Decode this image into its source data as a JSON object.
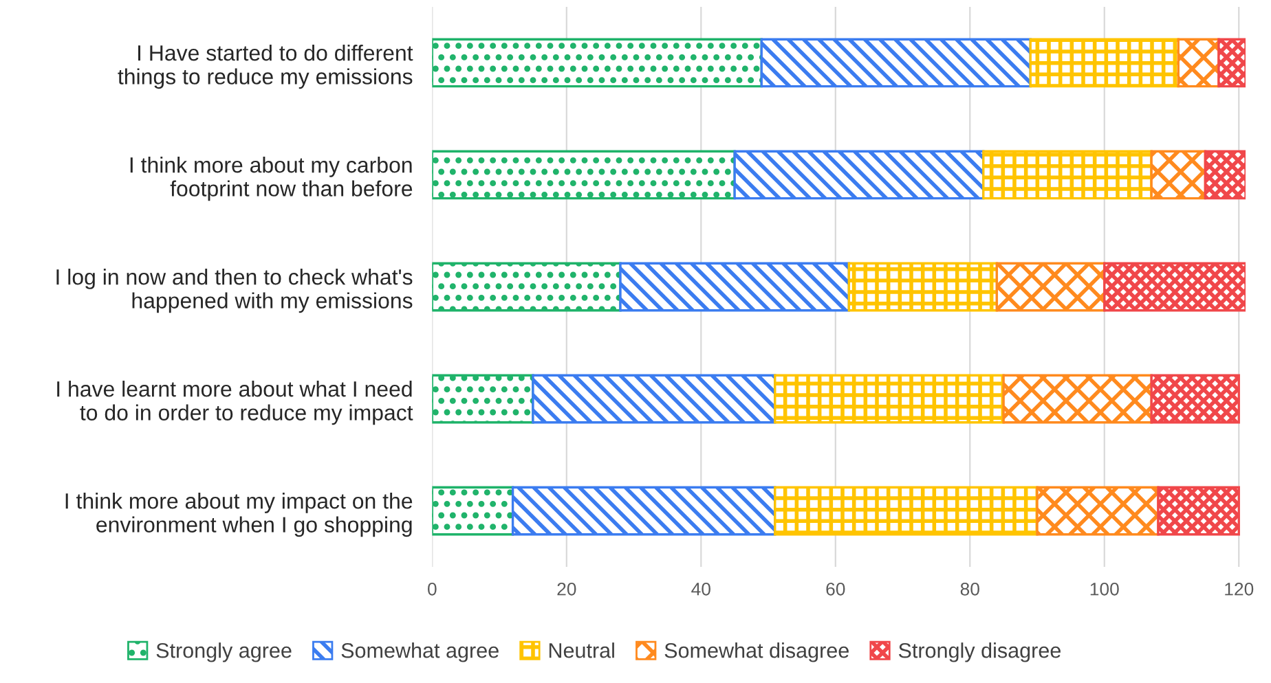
{
  "chart_data": {
    "type": "bar",
    "orientation": "horizontal",
    "stacked": true,
    "categories": [
      "I Have started to do different\nthings to reduce my emissions",
      "I think more about my carbon\nfootprint now than before",
      "I log in now and then to check what's\nhappened with my emissions",
      "I have learnt more about what I need\nto do in order to reduce my impact",
      "I think more about my impact on the\nenvironment when I go shopping"
    ],
    "series": [
      {
        "name": "Strongly agree",
        "color": "#1fb36a",
        "values": [
          49,
          45,
          28,
          15,
          12
        ]
      },
      {
        "name": "Somewhat agree",
        "color": "#3b7cf0",
        "values": [
          40,
          37,
          34,
          36,
          39
        ]
      },
      {
        "name": "Neutral",
        "color": "#ffc400",
        "values": [
          22,
          25,
          22,
          34,
          39
        ]
      },
      {
        "name": "Somewhat disagree",
        "color": "#ff8a1e",
        "values": [
          6,
          8,
          16,
          22,
          18
        ]
      },
      {
        "name": "Strongly disagree",
        "color": "#f0474a",
        "values": [
          4,
          6,
          21,
          13,
          12
        ]
      }
    ],
    "xlim": [
      0,
      121
    ],
    "xticks": [
      0,
      20,
      40,
      60,
      80,
      100,
      120
    ],
    "grid": "x",
    "legend": "bottom"
  }
}
